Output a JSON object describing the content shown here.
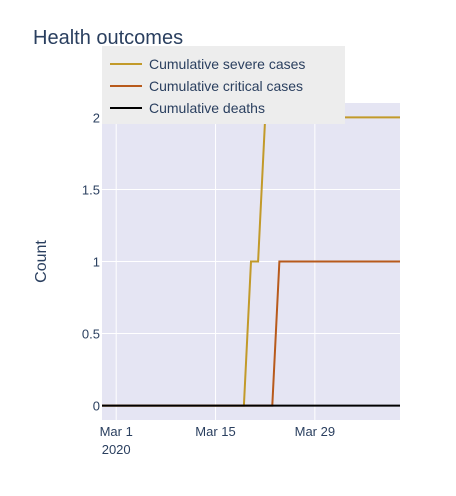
{
  "chart_data": {
    "type": "line",
    "title": "Health outcomes",
    "xlabel": "",
    "ylabel": "Count",
    "x_ticks": [
      "Mar 1",
      "Mar 15",
      "Mar 29"
    ],
    "x_tick_year": "2020",
    "y_ticks": [
      "0",
      "0.5",
      "1",
      "1.5",
      "2"
    ],
    "xlim": [
      "2020-02-28",
      "2020-04-10"
    ],
    "ylim": [
      -0.1,
      2.1
    ],
    "grid": true,
    "legend_position": "top-left",
    "background_color": "#e5e5f3",
    "series": [
      {
        "name": "Cumulative severe cases",
        "color": "#c29a2a",
        "points": [
          {
            "x": "2020-02-28",
            "y": 0
          },
          {
            "x": "2020-03-19",
            "y": 0
          },
          {
            "x": "2020-03-20",
            "y": 1
          },
          {
            "x": "2020-03-21",
            "y": 1
          },
          {
            "x": "2020-03-22",
            "y": 2
          },
          {
            "x": "2020-04-10",
            "y": 2
          }
        ]
      },
      {
        "name": "Cumulative critical cases",
        "color": "#b85a1b",
        "points": [
          {
            "x": "2020-02-28",
            "y": 0
          },
          {
            "x": "2020-03-23",
            "y": 0
          },
          {
            "x": "2020-03-24",
            "y": 1
          },
          {
            "x": "2020-04-10",
            "y": 1
          }
        ]
      },
      {
        "name": "Cumulative deaths",
        "color": "#000000",
        "points": [
          {
            "x": "2020-02-28",
            "y": 0
          },
          {
            "x": "2020-04-10",
            "y": 0
          }
        ]
      }
    ]
  }
}
